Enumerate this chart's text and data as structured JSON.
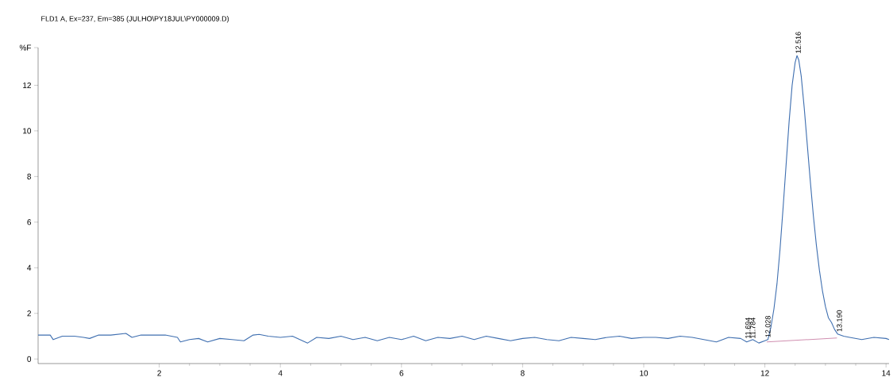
{
  "chart_data": {
    "type": "line",
    "title": "FLD1 A, Ex=237, Em=385 (JULHO\\PY18JUL\\PY000009.D)",
    "xlim": [
      0,
      14.05
    ],
    "ylim": [
      -0.2,
      13.65
    ],
    "xticks": [
      2,
      4,
      6,
      8,
      10,
      12,
      14
    ],
    "yticks": [
      0,
      2,
      4,
      6,
      8,
      10,
      12,
      {
        "value": 13.65,
        "label": "%F"
      }
    ],
    "grid": false,
    "marker": "none",
    "line_style": "solid",
    "series": [
      {
        "color": "#3f6fb0",
        "x": [
          0,
          0.2,
          0.25,
          0.4,
          0.6,
          0.75,
          0.85,
          1.0,
          1.2,
          1.45,
          1.55,
          1.7,
          1.9,
          2.1,
          2.3,
          2.35,
          2.5,
          2.65,
          2.8,
          3.0,
          3.2,
          3.4,
          3.55,
          3.65,
          3.8,
          4.0,
          4.2,
          4.45,
          4.6,
          4.8,
          5.0,
          5.2,
          5.4,
          5.6,
          5.8,
          6.0,
          6.2,
          6.4,
          6.6,
          6.8,
          7.0,
          7.2,
          7.4,
          7.6,
          7.8,
          8.0,
          8.2,
          8.4,
          8.6,
          8.8,
          9.0,
          9.2,
          9.4,
          9.6,
          9.8,
          10.0,
          10.2,
          10.4,
          10.6,
          10.8,
          11.0,
          11.2,
          11.4,
          11.6,
          11.7,
          11.8,
          11.9,
          12.0,
          12.05,
          12.1,
          12.15,
          12.2,
          12.25,
          12.3,
          12.35,
          12.4,
          12.45,
          12.5,
          12.53,
          12.56,
          12.6,
          12.65,
          12.7,
          12.75,
          12.8,
          12.85,
          12.9,
          12.95,
          13.0,
          13.05,
          13.1,
          13.15,
          13.2,
          13.3,
          13.4,
          13.6,
          13.8,
          14.0,
          14.05
        ],
        "values": [
          1.05,
          1.05,
          0.85,
          1.0,
          1.0,
          0.95,
          0.9,
          1.05,
          1.05,
          1.12,
          0.95,
          1.05,
          1.05,
          1.05,
          0.95,
          0.75,
          0.85,
          0.9,
          0.75,
          0.9,
          0.85,
          0.8,
          1.05,
          1.08,
          1.0,
          0.95,
          1.0,
          0.7,
          0.95,
          0.9,
          1.0,
          0.85,
          0.95,
          0.8,
          0.95,
          0.85,
          1.0,
          0.8,
          0.95,
          0.9,
          1.0,
          0.85,
          1.0,
          0.9,
          0.8,
          0.9,
          0.95,
          0.85,
          0.8,
          0.95,
          0.9,
          0.85,
          0.95,
          1.0,
          0.9,
          0.95,
          0.95,
          0.9,
          1.0,
          0.95,
          0.85,
          0.75,
          0.95,
          0.9,
          0.75,
          0.85,
          0.7,
          0.8,
          0.85,
          1.4,
          2.2,
          3.3,
          4.8,
          6.6,
          8.5,
          10.4,
          12.0,
          13.0,
          13.3,
          13.1,
          12.4,
          11.0,
          9.4,
          7.8,
          6.3,
          5.0,
          3.9,
          3.0,
          2.3,
          1.8,
          1.6,
          1.3,
          1.1,
          1.0,
          0.95,
          0.85,
          0.95,
          0.9,
          0.85
        ]
      },
      {
        "color": "#d08fb0",
        "x": [
          12.03,
          13.19
        ],
        "values": [
          0.75,
          0.92
        ]
      }
    ],
    "annotations": [
      {
        "text": "11.694",
        "x": 11.72,
        "y": 0.85
      },
      {
        "text": "11.784",
        "x": 11.8,
        "y": 0.85
      },
      {
        "text": "12.028",
        "x": 12.05,
        "y": 0.9
      },
      {
        "text": "12.516",
        "x": 12.55,
        "y": 13.35
      },
      {
        "text": "13.190",
        "x": 13.23,
        "y": 1.15
      }
    ]
  }
}
